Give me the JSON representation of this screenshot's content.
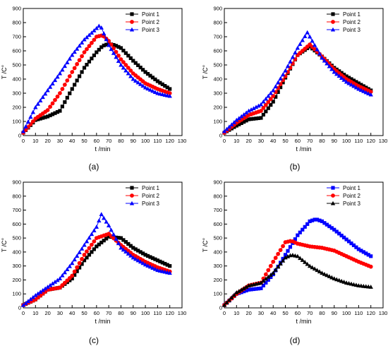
{
  "figure": {
    "panel_labels": [
      "(a)",
      "(b)",
      "(c)",
      "(d)"
    ]
  },
  "chart_data": [
    {
      "type": "line",
      "panel": "(a)",
      "xlabel": "t /min",
      "ylabel": "T /C°",
      "xlim": [
        0,
        130
      ],
      "ylim": [
        0,
        900
      ],
      "xticks": [
        0,
        10,
        20,
        30,
        40,
        50,
        60,
        70,
        80,
        90,
        100,
        110,
        120,
        130
      ],
      "yticks": [
        0,
        100,
        200,
        300,
        400,
        500,
        600,
        700,
        800,
        900
      ],
      "legend_position": "top-right",
      "series": [
        {
          "name": "Point 1",
          "color": "#000000",
          "marker": "square",
          "x": [
            0,
            10,
            20,
            30,
            40,
            50,
            60,
            65,
            70,
            75,
            80,
            90,
            100,
            110,
            120
          ],
          "y": [
            20,
            110,
            135,
            175,
            330,
            480,
            590,
            635,
            650,
            640,
            620,
            530,
            450,
            385,
            330
          ]
        },
        {
          "name": "Point 2",
          "color": "#ff0000",
          "marker": "circle",
          "x": [
            0,
            10,
            20,
            30,
            40,
            50,
            60,
            65,
            70,
            80,
            90,
            100,
            110,
            120
          ],
          "y": [
            20,
            120,
            180,
            300,
            450,
            590,
            700,
            710,
            670,
            540,
            440,
            370,
            330,
            300
          ]
        },
        {
          "name": "Point 3",
          "color": "#0000ff",
          "marker": "triangle",
          "x": [
            0,
            10,
            20,
            30,
            40,
            50,
            60,
            63,
            70,
            80,
            90,
            100,
            110,
            120
          ],
          "y": [
            30,
            200,
            320,
            440,
            570,
            680,
            760,
            785,
            640,
            500,
            400,
            340,
            300,
            280
          ]
        }
      ]
    },
    {
      "type": "line",
      "panel": "(b)",
      "xlabel": "t /min",
      "ylabel": "T /C°",
      "xlim": [
        0,
        130
      ],
      "ylim": [
        0,
        900
      ],
      "xticks": [
        0,
        10,
        20,
        30,
        40,
        50,
        60,
        70,
        80,
        90,
        100,
        110,
        120,
        130
      ],
      "yticks": [
        0,
        100,
        200,
        300,
        400,
        500,
        600,
        700,
        800,
        900
      ],
      "legend_position": "top-right",
      "series": [
        {
          "name": "Point 1",
          "color": "#000000",
          "marker": "square",
          "x": [
            0,
            10,
            20,
            30,
            40,
            50,
            60,
            70,
            80,
            90,
            100,
            110,
            120
          ],
          "y": [
            20,
            70,
            115,
            125,
            240,
            410,
            570,
            630,
            560,
            480,
            420,
            370,
            320
          ]
        },
        {
          "name": "Point 2",
          "color": "#ff0000",
          "marker": "circle",
          "x": [
            0,
            10,
            20,
            30,
            40,
            50,
            60,
            70,
            80,
            90,
            100,
            110,
            120
          ],
          "y": [
            20,
            90,
            145,
            175,
            280,
            420,
            570,
            645,
            560,
            470,
            400,
            350,
            310
          ]
        },
        {
          "name": "Point 3",
          "color": "#0000ff",
          "marker": "triangle",
          "x": [
            0,
            10,
            20,
            30,
            40,
            50,
            60,
            68,
            70,
            80,
            90,
            100,
            110,
            120
          ],
          "y": [
            30,
            110,
            175,
            220,
            320,
            460,
            620,
            730,
            700,
            550,
            450,
            380,
            330,
            290
          ]
        }
      ]
    },
    {
      "type": "line",
      "panel": "(c)",
      "xlabel": "t /min",
      "ylabel": "T /C°",
      "xlim": [
        0,
        130
      ],
      "ylim": [
        0,
        900
      ],
      "xticks": [
        0,
        10,
        20,
        30,
        40,
        50,
        60,
        70,
        80,
        90,
        100,
        110,
        120,
        130
      ],
      "yticks": [
        0,
        100,
        200,
        300,
        400,
        500,
        600,
        700,
        800,
        900
      ],
      "legend_position": "top-right",
      "series": [
        {
          "name": "Point 1",
          "color": "#000000",
          "marker": "square",
          "x": [
            0,
            10,
            20,
            30,
            40,
            50,
            60,
            70,
            80,
            90,
            100,
            110,
            120
          ],
          "y": [
            20,
            60,
            130,
            145,
            210,
            340,
            440,
            510,
            500,
            430,
            380,
            340,
            300
          ]
        },
        {
          "name": "Point 2",
          "color": "#ff0000",
          "marker": "circle",
          "x": [
            0,
            10,
            20,
            30,
            40,
            50,
            60,
            70,
            80,
            90,
            100,
            110,
            120
          ],
          "y": [
            20,
            60,
            130,
            145,
            230,
            380,
            500,
            530,
            450,
            380,
            330,
            290,
            260
          ]
        },
        {
          "name": "Point 3",
          "color": "#0000ff",
          "marker": "triangle",
          "x": [
            0,
            10,
            20,
            30,
            40,
            50,
            60,
            64,
            70,
            80,
            90,
            100,
            110,
            120
          ],
          "y": [
            20,
            90,
            150,
            210,
            320,
            450,
            580,
            670,
            590,
            430,
            360,
            310,
            270,
            250
          ]
        }
      ]
    },
    {
      "type": "line",
      "panel": "(d)",
      "xlabel": "t /min",
      "ylabel": "T /C°",
      "xlim": [
        0,
        130
      ],
      "ylim": [
        0,
        900
      ],
      "xticks": [
        0,
        10,
        20,
        30,
        40,
        50,
        60,
        70,
        80,
        90,
        100,
        110,
        120,
        130
      ],
      "yticks": [
        0,
        100,
        200,
        300,
        400,
        500,
        600,
        700,
        800,
        900
      ],
      "legend_position": "top-right",
      "series": [
        {
          "name": "Point 1",
          "color": "#0000ff",
          "marker": "square",
          "x": [
            0,
            10,
            20,
            30,
            40,
            50,
            60,
            70,
            75,
            80,
            90,
            100,
            110,
            120
          ],
          "y": [
            20,
            100,
            130,
            140,
            240,
            380,
            520,
            620,
            635,
            620,
            560,
            490,
            420,
            370
          ]
        },
        {
          "name": "Point 2",
          "color": "#ff0000",
          "marker": "circle",
          "x": [
            0,
            10,
            20,
            30,
            40,
            50,
            55,
            60,
            70,
            80,
            90,
            100,
            110,
            120
          ],
          "y": [
            20,
            100,
            160,
            180,
            330,
            470,
            480,
            460,
            440,
            430,
            410,
            370,
            330,
            295
          ]
        },
        {
          "name": "Point 3",
          "color": "#000000",
          "marker": "triangle",
          "x": [
            0,
            10,
            20,
            30,
            40,
            50,
            55,
            60,
            70,
            80,
            90,
            100,
            110,
            120
          ],
          "y": [
            20,
            110,
            160,
            180,
            250,
            360,
            380,
            370,
            300,
            250,
            210,
            180,
            160,
            150
          ]
        }
      ]
    }
  ]
}
